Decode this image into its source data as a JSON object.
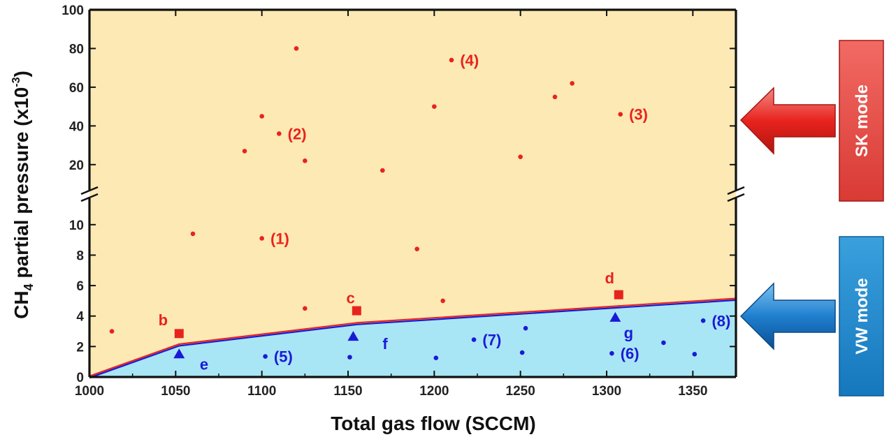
{
  "chart_data": {
    "type": "scatter",
    "title": "",
    "xlabel": "Total gas flow (SCCM)",
    "ylabel_main": "CH",
    "ylabel_sub": "4",
    "ylabel_rest": " partial pressure (x10",
    "ylabel_sup": "-3",
    "ylabel_close": ")",
    "xlim": [
      1000,
      1375
    ],
    "x_ticks": [
      1000,
      1050,
      1100,
      1150,
      1200,
      1250,
      1300,
      1350
    ],
    "ylim_lower": [
      0,
      11
    ],
    "ylim_upper": [
      12,
      100
    ],
    "y_ticks_lower": [
      0,
      2,
      4,
      6,
      8,
      10
    ],
    "y_ticks_upper": [
      20,
      40,
      60,
      80,
      100
    ],
    "colors": {
      "sk_region": "#fde9b4",
      "vw_region": "#a9e6f5",
      "red": "#e8231e",
      "blue": "#1a1ad6",
      "sk_box": "#e94b4b",
      "vw_box": "#1f8ed1"
    },
    "boundary": {
      "x": [
        1000,
        1052,
        1155,
        1375
      ],
      "y": [
        0,
        2.1,
        3.5,
        5.1
      ]
    },
    "series": [
      {
        "marker": "circle",
        "color": "red",
        "points": [
          {
            "x": 1013,
            "y": 3.0
          },
          {
            "x": 1060,
            "y": 9.4
          },
          {
            "x": 1100,
            "y": 9.1
          },
          {
            "x": 1125,
            "y": 4.5
          },
          {
            "x": 1190,
            "y": 8.4
          },
          {
            "x": 1205,
            "y": 5.0
          },
          {
            "x": 1090,
            "y": 27
          },
          {
            "x": 1100,
            "y": 45
          },
          {
            "x": 1110,
            "y": 36
          },
          {
            "x": 1120,
            "y": 80
          },
          {
            "x": 1125,
            "y": 22
          },
          {
            "x": 1170,
            "y": 17
          },
          {
            "x": 1200,
            "y": 50
          },
          {
            "x": 1210,
            "y": 74
          },
          {
            "x": 1250,
            "y": 24
          },
          {
            "x": 1270,
            "y": 55
          },
          {
            "x": 1280,
            "y": 62
          },
          {
            "x": 1308,
            "y": 46
          }
        ]
      },
      {
        "marker": "square",
        "color": "red",
        "points": [
          {
            "x": 1052,
            "y": 2.85
          },
          {
            "x": 1155,
            "y": 4.35
          },
          {
            "x": 1307,
            "y": 5.4
          }
        ]
      },
      {
        "marker": "triangle",
        "color": "blue",
        "points": [
          {
            "x": 1052,
            "y": 1.5
          },
          {
            "x": 1153,
            "y": 2.65
          },
          {
            "x": 1305,
            "y": 3.9
          }
        ]
      },
      {
        "marker": "circle",
        "color": "blue",
        "points": [
          {
            "x": 1102,
            "y": 1.35
          },
          {
            "x": 1151,
            "y": 1.3
          },
          {
            "x": 1201,
            "y": 1.25
          },
          {
            "x": 1223,
            "y": 2.45
          },
          {
            "x": 1251,
            "y": 1.6
          },
          {
            "x": 1253,
            "y": 3.2
          },
          {
            "x": 1303,
            "y": 1.55
          },
          {
            "x": 1333,
            "y": 2.25
          },
          {
            "x": 1351,
            "y": 1.5
          },
          {
            "x": 1356,
            "y": 3.7
          }
        ]
      }
    ],
    "annotations": [
      {
        "text": "(1)",
        "x": 1105,
        "y": 9.1,
        "color": "red"
      },
      {
        "text": "(2)",
        "x": 1115,
        "y": 36,
        "color": "red"
      },
      {
        "text": "(3)",
        "x": 1313,
        "y": 46,
        "color": "red"
      },
      {
        "text": "(4)",
        "x": 1215,
        "y": 74,
        "color": "red"
      },
      {
        "text": "b",
        "x": 1040,
        "y": 3.75,
        "color": "red"
      },
      {
        "text": "c",
        "x": 1149,
        "y": 5.2,
        "color": "red"
      },
      {
        "text": "d",
        "x": 1299,
        "y": 6.5,
        "color": "red"
      },
      {
        "text": "(5)",
        "x": 1107,
        "y": 1.35,
        "color": "blue"
      },
      {
        "text": "(6)",
        "x": 1308,
        "y": 1.55,
        "color": "blue"
      },
      {
        "text": "(7)",
        "x": 1228,
        "y": 2.45,
        "color": "blue"
      },
      {
        "text": "(8)",
        "x": 1361,
        "y": 3.7,
        "color": "blue"
      },
      {
        "text": "e",
        "x": 1064,
        "y": 0.85,
        "color": "blue"
      },
      {
        "text": "f",
        "x": 1170,
        "y": 2.2,
        "color": "blue"
      },
      {
        "text": "g",
        "x": 1310,
        "y": 2.9,
        "color": "blue"
      }
    ],
    "modes": [
      {
        "label": "SK mode",
        "color": "sk_box",
        "arrow": "red"
      },
      {
        "label": "VW mode",
        "color": "vw_box",
        "arrow": "blue"
      }
    ]
  }
}
